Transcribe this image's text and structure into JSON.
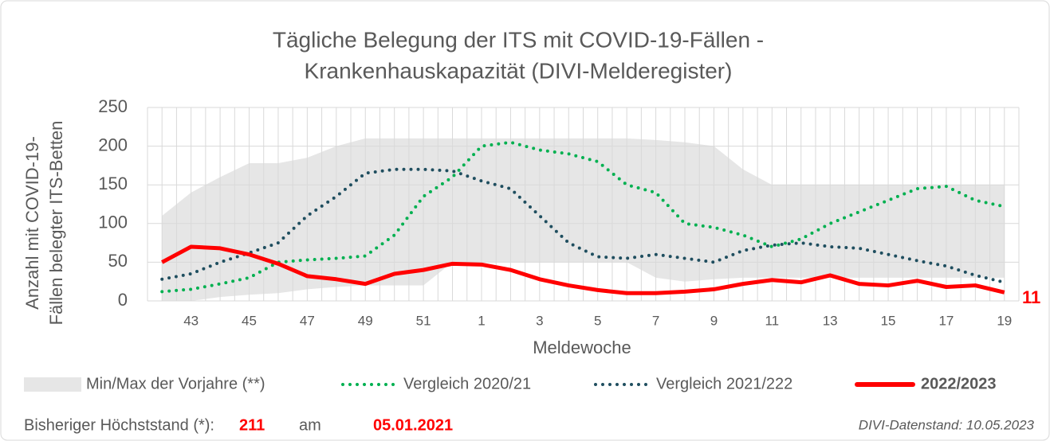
{
  "chart_data": {
    "type": "line",
    "title": [
      "Tägliche Belegung der ITS mit COVID-19-Fällen -",
      "Krankenhauskapazität (DIVI-Melderegister)"
    ],
    "xlabel": "Meldewoche",
    "ylabel": [
      "Anzahl mit COVID-19-",
      "Fällen belegter ITS-Betten"
    ],
    "categories": [
      null,
      "43",
      null,
      "45",
      null,
      "47",
      null,
      "49",
      null,
      "51",
      null,
      "1",
      null,
      "3",
      null,
      "5",
      null,
      "7",
      null,
      "9",
      null,
      "11",
      null,
      "13",
      null,
      "15",
      null,
      "17",
      null,
      "19"
    ],
    "ylim": [
      0,
      250
    ],
    "yticks": [
      0,
      50,
      100,
      150,
      200,
      250
    ],
    "grid": true,
    "band": {
      "name": "Min/Max der Vorjahre (**)",
      "color": "#e6e6e6",
      "max": [
        110,
        140,
        160,
        178,
        178,
        185,
        200,
        210,
        210,
        210,
        210,
        210,
        210,
        210,
        210,
        210,
        210,
        208,
        205,
        200,
        170,
        150,
        150,
        150,
        150,
        150,
        150,
        150,
        150,
        150
      ],
      "min": [
        0,
        0,
        5,
        8,
        10,
        15,
        18,
        20,
        20,
        20,
        50,
        50,
        50,
        50,
        50,
        50,
        50,
        30,
        25,
        28,
        30,
        30,
        30,
        30,
        30,
        30,
        30,
        30,
        30,
        30
      ]
    },
    "series": [
      {
        "name": "Vergleich 2020/21",
        "color": "#00b050",
        "style": "dotted",
        "values": [
          12,
          15,
          22,
          30,
          50,
          53,
          55,
          58,
          85,
          135,
          160,
          200,
          205,
          195,
          190,
          180,
          150,
          140,
          100,
          95,
          85,
          70,
          80,
          100,
          115,
          130,
          145,
          148,
          130,
          122
        ]
      },
      {
        "name": "Vergleich 2021/222",
        "color": "#1f4e5f",
        "style": "dotted",
        "values": [
          28,
          35,
          50,
          62,
          75,
          110,
          135,
          165,
          170,
          170,
          168,
          155,
          145,
          110,
          75,
          57,
          55,
          60,
          55,
          50,
          65,
          72,
          75,
          70,
          68,
          60,
          52,
          45,
          33,
          24
        ]
      },
      {
        "name": "2022/2023",
        "color": "#ff0000",
        "style": "solid",
        "bold_legend": true,
        "end_label": true,
        "values": [
          50,
          70,
          68,
          60,
          48,
          32,
          28,
          22,
          35,
          40,
          48,
          47,
          40,
          28,
          20,
          14,
          10,
          10,
          12,
          15,
          22,
          27,
          24,
          33,
          22,
          20,
          26,
          18,
          20,
          11
        ]
      }
    ],
    "footer": {
      "label": "Bisheriger Höchststand (*):",
      "value": 211,
      "at": "am",
      "date": "05.01.2021",
      "source": "DIVI-Datenstand: 10.05.2023"
    }
  }
}
